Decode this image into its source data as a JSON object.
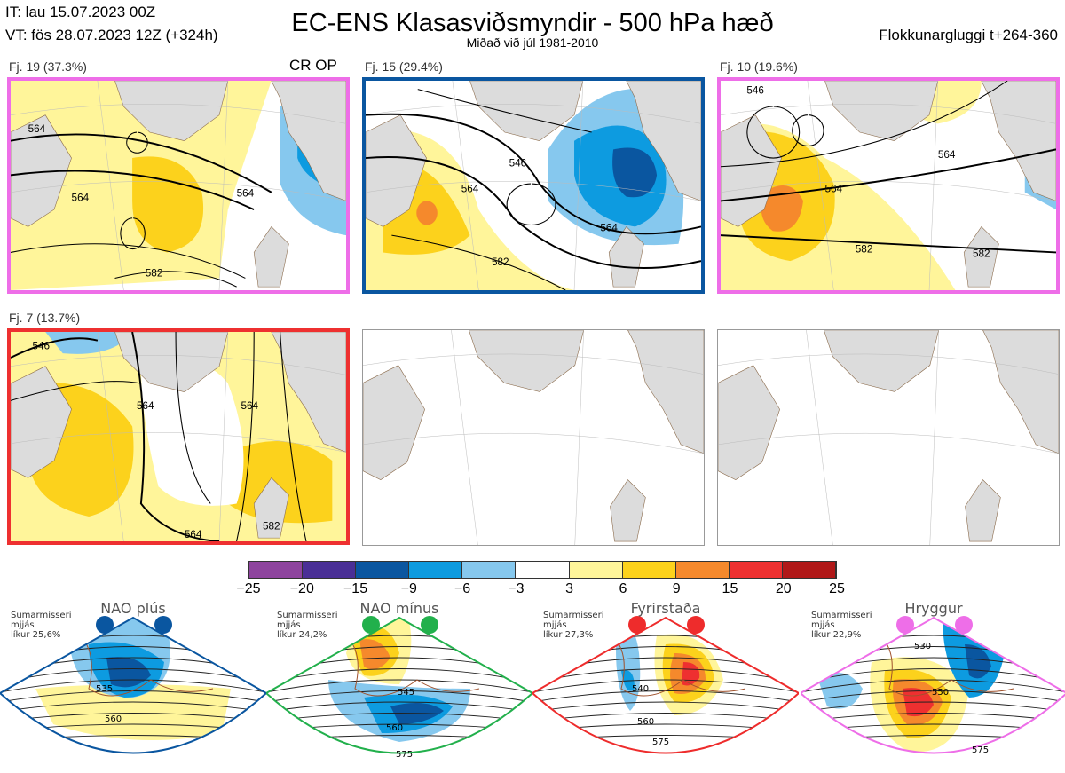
{
  "header": {
    "it": "IT: lau 15.07.2023 00Z",
    "vt": "VT: fös 28.07.2023 12Z  (+324h)",
    "title": "EC-ENS Klasasviðsmyndir - 500 hPa hæð",
    "subtitle": "Miðað við júl 1981-2010",
    "window": "Flokkunargluggi t+264-360"
  },
  "panels": [
    {
      "label": "Fj. 19 (37.3%)",
      "tag": "CR OP",
      "border": "#ee6ee8",
      "contours": [
        "564",
        "564",
        "564",
        "582"
      ]
    },
    {
      "label": "Fj. 15 (29.4%)",
      "border": "#0a56a0",
      "contours": [
        "546",
        "564",
        "564",
        "582"
      ]
    },
    {
      "label": "Fj. 10 (19.6%)",
      "border": "#ee6ee8",
      "contours": [
        "546",
        "564",
        "564",
        "582",
        "582"
      ]
    },
    {
      "label": "Fj. 7 (13.7%)",
      "border": "#ee3030",
      "contours": [
        "546",
        "564",
        "564",
        "564",
        "582"
      ]
    }
  ],
  "colorbar": {
    "ticks": [
      "−25",
      "−20",
      "−15",
      "−9",
      "−6",
      "−3",
      "3",
      "6",
      "9",
      "15",
      "20",
      "25"
    ],
    "colors": [
      "#8e449e",
      "#4a2f96",
      "#0a56a0",
      "#0d9be0",
      "#86c8ee",
      "#ffffff",
      "#fff59a",
      "#fcd21c",
      "#f5892c",
      "#ee3030",
      "#b01818"
    ]
  },
  "regimes": [
    {
      "name": "NAO plús",
      "season": "Sumarmisseri",
      "months": "mjjás",
      "prob": "líkur 25,6%",
      "color": "#0a56a0",
      "contours": [
        "535",
        "560"
      ]
    },
    {
      "name": "NAO mínus",
      "season": "Sumarmisseri",
      "months": "mjjás",
      "prob": "líkur 24,2%",
      "color": "#22b04c",
      "contours": [
        "545",
        "560",
        "575"
      ]
    },
    {
      "name": "Fyrirstaða",
      "season": "Sumarmisseri",
      "months": "mjjás",
      "prob": "líkur 27,3%",
      "color": "#ee2c2c",
      "contours": [
        "540",
        "560",
        "575"
      ]
    },
    {
      "name": "Hryggur",
      "season": "Sumarmisseri",
      "months": "mjjás",
      "prob": "líkur 22,9%",
      "color": "#ee6ee8",
      "contours": [
        "530",
        "550",
        "575"
      ]
    }
  ]
}
